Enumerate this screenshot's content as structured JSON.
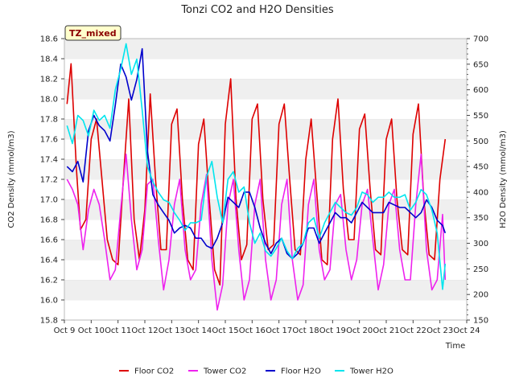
{
  "chart_data": {
    "type": "line",
    "title": "Tonzi CO2 and H2O Densities",
    "xlabel": "Time",
    "ylabel_left": "CO2 Density (mmol/m3)",
    "ylabel_right": "H2O Density (mmol/m3)",
    "site_label": "TZ_mixed",
    "xlim": [
      9,
      24
    ],
    "ylim_left": [
      15.8,
      18.6
    ],
    "ylim_right": [
      150,
      700
    ],
    "x_ticks": [
      9,
      10,
      11,
      12,
      13,
      14,
      15,
      16,
      17,
      18,
      19,
      20,
      21,
      22,
      23,
      24
    ],
    "x_tick_labels": [
      "Oct 9",
      "Oct 10",
      "Oct 11",
      "Oct 12",
      "Oct 13",
      "Oct 14",
      "Oct 15",
      "Oct 16",
      "Oct 17",
      "Oct 18",
      "Oct 19",
      "Oct 20",
      "Oct 21",
      "Oct 22",
      "Oct 23",
      "Oct 24"
    ],
    "y_left_ticks": [
      15.8,
      16.0,
      16.2,
      16.4,
      16.6,
      16.8,
      17.0,
      17.2,
      17.4,
      17.6,
      17.8,
      18.0,
      18.2,
      18.4,
      18.6
    ],
    "y_left_tick_labels": [
      "15.8",
      "16.0",
      "16.2",
      "16.4",
      "16.6",
      "16.8",
      "17.0",
      "17.2",
      "17.4",
      "17.6",
      "17.8",
      "18.0",
      "18.2",
      "18.4",
      "18.6"
    ],
    "y_right_ticks": [
      150,
      200,
      250,
      300,
      350,
      400,
      450,
      500,
      550,
      600,
      650,
      700
    ],
    "y_right_tick_labels": [
      "150",
      "200",
      "250",
      "300",
      "350",
      "400",
      "450",
      "500",
      "550",
      "600",
      "650",
      "700"
    ],
    "grid": "horizontal bands",
    "legend_position": "bottom",
    "series": [
      {
        "name": "Floor CO2",
        "axis": "left",
        "color": "#dd0000",
        "x": [
          9.1,
          9.25,
          9.45,
          9.6,
          9.8,
          10.0,
          10.2,
          10.4,
          10.6,
          10.8,
          11.0,
          11.2,
          11.4,
          11.6,
          11.8,
          12.0,
          12.2,
          12.4,
          12.6,
          12.8,
          13.0,
          13.2,
          13.4,
          13.6,
          13.8,
          14.0,
          14.2,
          14.4,
          14.6,
          14.8,
          15.0,
          15.2,
          15.4,
          15.6,
          15.8,
          16.0,
          16.2,
          16.4,
          16.6,
          16.8,
          17.0,
          17.2,
          17.4,
          17.6,
          17.8,
          18.0,
          18.2,
          18.4,
          18.6,
          18.8,
          19.0,
          19.2,
          19.4,
          19.6,
          19.8,
          20.0,
          20.2,
          20.4,
          20.6,
          20.8,
          21.0,
          21.2,
          21.4,
          21.6,
          21.8,
          22.0,
          22.2,
          22.4,
          22.6,
          22.8,
          23.0,
          23.2
        ],
        "values": [
          17.95,
          18.35,
          17.3,
          16.7,
          16.8,
          17.6,
          17.8,
          17.2,
          16.6,
          16.4,
          16.35,
          17.2,
          18.0,
          16.8,
          16.4,
          16.9,
          18.05,
          17.2,
          16.5,
          16.5,
          17.75,
          17.9,
          17.0,
          16.4,
          16.3,
          17.55,
          17.8,
          17.0,
          16.3,
          16.15,
          17.75,
          18.2,
          17.0,
          16.4,
          16.55,
          17.8,
          17.95,
          17.0,
          16.5,
          16.55,
          17.75,
          17.95,
          17.2,
          16.5,
          16.45,
          17.4,
          17.8,
          17.1,
          16.4,
          16.35,
          17.6,
          18.0,
          17.1,
          16.6,
          16.6,
          17.7,
          17.85,
          17.1,
          16.5,
          16.45,
          17.6,
          17.8,
          17.0,
          16.5,
          16.45,
          17.65,
          17.95,
          17.0,
          16.45,
          16.4,
          17.2,
          17.6
        ]
      },
      {
        "name": "Tower CO2",
        "axis": "left",
        "color": "#ee22ee",
        "x": [
          9.1,
          9.3,
          9.5,
          9.7,
          9.9,
          10.1,
          10.3,
          10.5,
          10.7,
          10.9,
          11.1,
          11.3,
          11.5,
          11.7,
          11.9,
          12.1,
          12.3,
          12.5,
          12.7,
          12.9,
          13.1,
          13.3,
          13.5,
          13.7,
          13.9,
          14.1,
          14.3,
          14.5,
          14.7,
          14.9,
          15.1,
          15.3,
          15.5,
          15.7,
          15.9,
          16.1,
          16.3,
          16.5,
          16.7,
          16.9,
          17.1,
          17.3,
          17.5,
          17.7,
          17.9,
          18.1,
          18.3,
          18.5,
          18.7,
          18.9,
          19.1,
          19.3,
          19.5,
          19.7,
          19.9,
          20.1,
          20.3,
          20.5,
          20.7,
          20.9,
          21.1,
          21.3,
          21.5,
          21.7,
          21.9,
          22.1,
          22.3,
          22.5,
          22.7,
          22.9,
          23.1,
          23.2
        ],
        "values": [
          17.2,
          17.1,
          16.95,
          16.5,
          16.9,
          17.1,
          16.95,
          16.6,
          16.2,
          16.3,
          16.9,
          17.45,
          16.8,
          16.3,
          16.5,
          17.15,
          17.2,
          16.6,
          16.1,
          16.4,
          16.95,
          17.2,
          16.5,
          16.2,
          16.3,
          16.95,
          17.25,
          16.4,
          15.9,
          16.15,
          16.95,
          17.2,
          16.5,
          16.0,
          16.2,
          16.95,
          17.2,
          16.4,
          16.0,
          16.2,
          16.95,
          17.2,
          16.4,
          16.0,
          16.15,
          16.95,
          17.2,
          16.5,
          16.2,
          16.3,
          16.95,
          17.05,
          16.5,
          16.2,
          16.4,
          16.95,
          17.1,
          16.6,
          16.1,
          16.35,
          16.95,
          17.1,
          16.5,
          16.2,
          16.2,
          16.95,
          17.45,
          16.5,
          16.1,
          16.2,
          16.85,
          16.2
        ]
      },
      {
        "name": "Floor H2O",
        "axis": "right",
        "color": "#0000cc",
        "x": [
          9.1,
          9.3,
          9.5,
          9.7,
          9.9,
          10.1,
          10.3,
          10.5,
          10.7,
          10.9,
          11.1,
          11.3,
          11.5,
          11.7,
          11.9,
          12.1,
          12.3,
          12.5,
          12.7,
          12.9,
          13.1,
          13.3,
          13.5,
          13.7,
          13.9,
          14.1,
          14.3,
          14.5,
          14.7,
          14.9,
          15.1,
          15.3,
          15.5,
          15.7,
          15.9,
          16.1,
          16.3,
          16.5,
          16.7,
          16.9,
          17.1,
          17.3,
          17.5,
          17.7,
          17.9,
          18.1,
          18.3,
          18.5,
          18.7,
          18.9,
          19.1,
          19.3,
          19.5,
          19.7,
          19.9,
          20.1,
          20.3,
          20.5,
          20.7,
          20.9,
          21.1,
          21.3,
          21.5,
          21.7,
          21.9,
          22.1,
          22.3,
          22.5,
          22.7,
          22.9,
          23.1,
          23.2
        ],
        "values": [
          450,
          440,
          460,
          420,
          520,
          550,
          530,
          520,
          500,
          570,
          650,
          625,
          580,
          620,
          680,
          480,
          395,
          375,
          360,
          345,
          320,
          330,
          335,
          330,
          310,
          310,
          295,
          290,
          310,
          340,
          390,
          380,
          370,
          400,
          400,
          370,
          330,
          300,
          280,
          300,
          310,
          280,
          270,
          280,
          300,
          330,
          330,
          300,
          320,
          340,
          360,
          350,
          350,
          340,
          360,
          380,
          370,
          360,
          360,
          360,
          380,
          375,
          370,
          370,
          360,
          350,
          360,
          385,
          370,
          345,
          335,
          320
        ]
      },
      {
        "name": "Tower H2O",
        "axis": "right",
        "color": "#00e5ee",
        "x": [
          9.1,
          9.3,
          9.5,
          9.7,
          9.9,
          10.1,
          10.3,
          10.5,
          10.7,
          10.9,
          11.1,
          11.3,
          11.5,
          11.7,
          11.9,
          12.1,
          12.3,
          12.5,
          12.7,
          12.9,
          13.1,
          13.3,
          13.5,
          13.7,
          13.9,
          14.1,
          14.3,
          14.5,
          14.7,
          14.9,
          15.1,
          15.3,
          15.5,
          15.7,
          15.9,
          16.1,
          16.3,
          16.5,
          16.7,
          16.9,
          17.1,
          17.3,
          17.5,
          17.7,
          17.9,
          18.1,
          18.3,
          18.5,
          18.7,
          18.9,
          19.1,
          19.3,
          19.5,
          19.7,
          19.9,
          20.1,
          20.3,
          20.5,
          20.7,
          20.9,
          21.1,
          21.3,
          21.5,
          21.7,
          21.9,
          22.1,
          22.3,
          22.5,
          22.7,
          22.9,
          23.1,
          23.2
        ],
        "values": [
          530,
          495,
          550,
          540,
          510,
          560,
          540,
          550,
          525,
          600,
          640,
          690,
          630,
          660,
          560,
          450,
          420,
          400,
          385,
          380,
          360,
          345,
          325,
          340,
          340,
          345,
          430,
          460,
          390,
          340,
          425,
          440,
          400,
          410,
          340,
          300,
          320,
          285,
          275,
          290,
          310,
          285,
          270,
          290,
          300,
          340,
          350,
          310,
          340,
          360,
          380,
          370,
          360,
          355,
          370,
          400,
          395,
          380,
          390,
          390,
          400,
          390,
          390,
          395,
          365,
          380,
          405,
          395,
          365,
          320,
          210,
          260
        ]
      }
    ]
  }
}
